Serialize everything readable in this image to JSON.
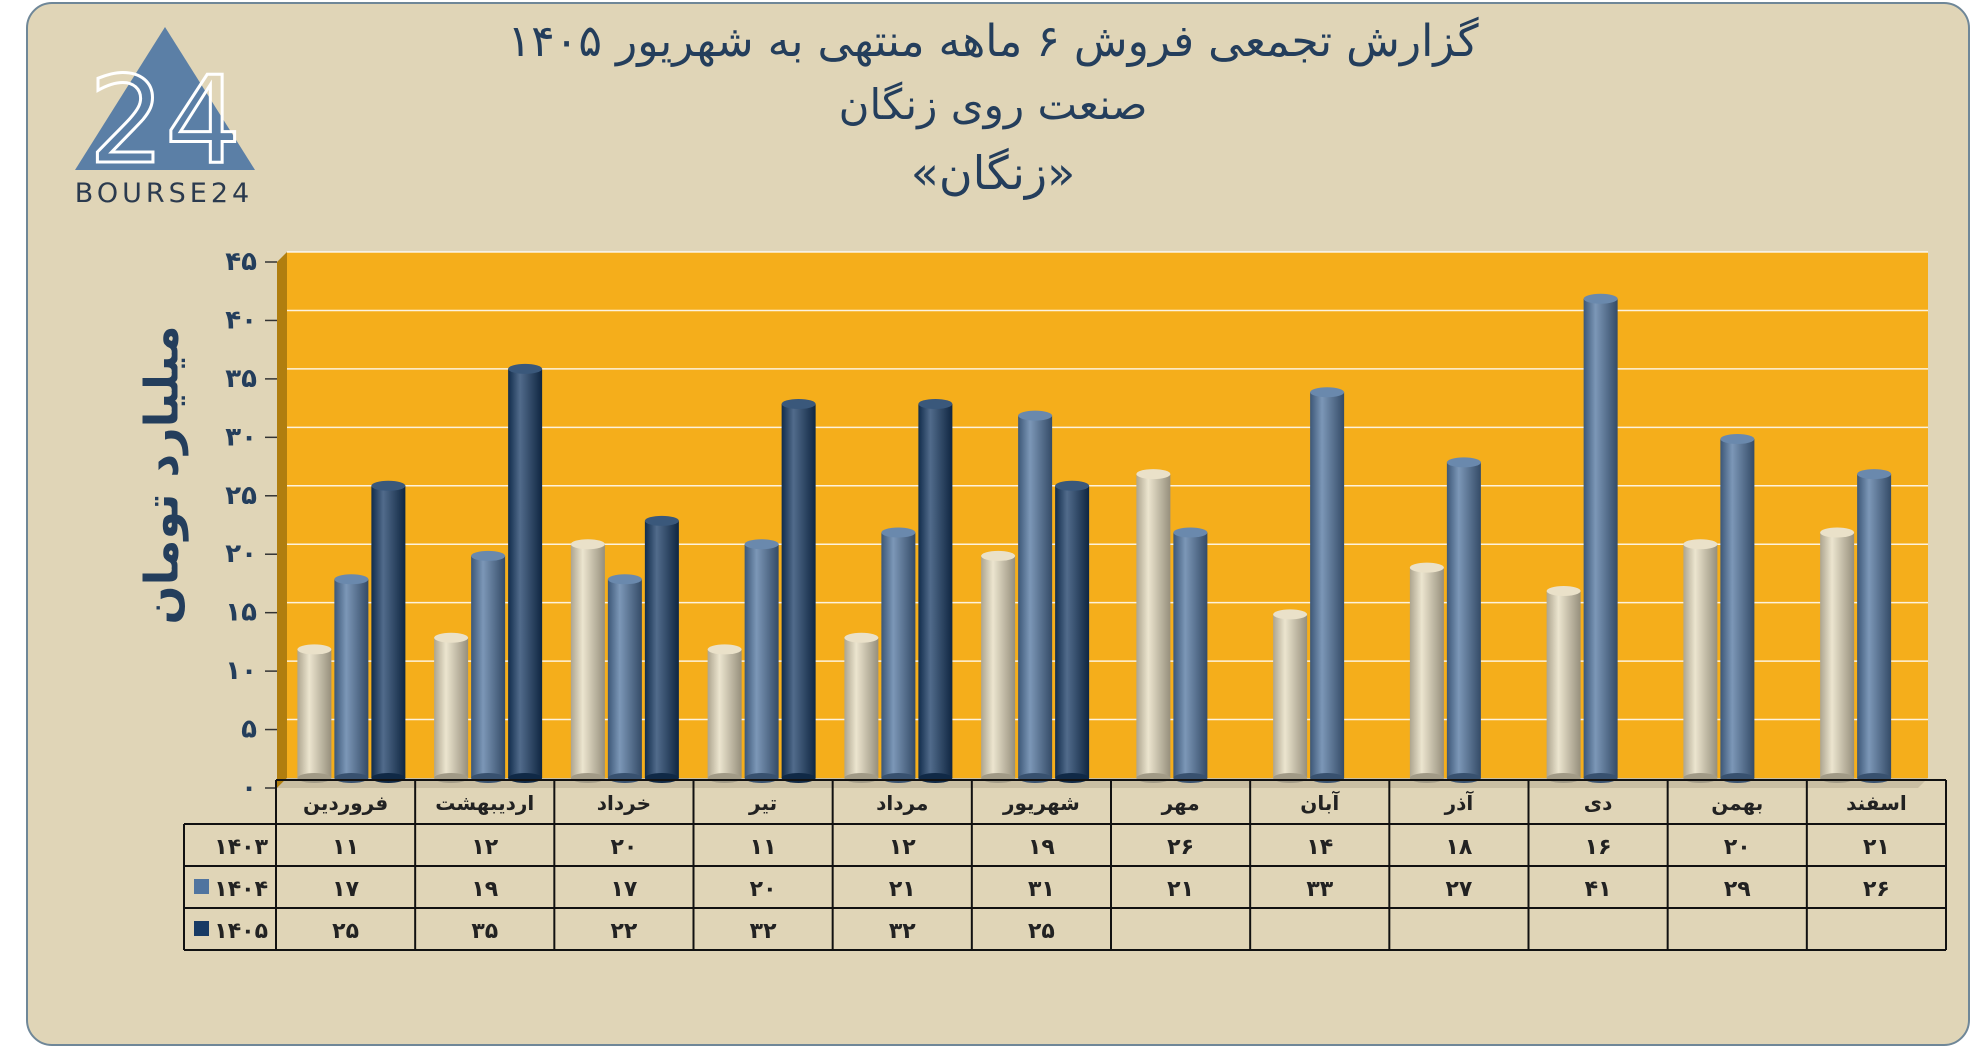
{
  "header": {
    "title_line1": "گزارش تجمعی فروش ۶ ماهه منتهی به شهریور ۱۴۰۵",
    "title_line2": "صنعت روی زنگان",
    "title_line3": "«زنگان»"
  },
  "logo": {
    "mark_text": "24",
    "wordmark": "BOURSE24"
  },
  "colors": {
    "plot_background": "#f5ae1b",
    "page_background": "#e0d5b7",
    "series_1403": "#e6dcbf",
    "series_1404": "#50749f",
    "series_1405": "#173a64",
    "text": "#243e5c"
  },
  "chart_data": {
    "type": "bar",
    "ylabel": "میلیارد تومان",
    "ylim": [
      0,
      45
    ],
    "yticks": [
      "۰",
      "۵",
      "۱۰",
      "۱۵",
      "۲۰",
      "۲۵",
      "۳۰",
      "۳۵",
      "۴۰",
      "۴۵"
    ],
    "grid": true,
    "legend": "data-table-left",
    "categories": [
      "فروردین",
      "اردیبهشت",
      "خرداد",
      "تیر",
      "مرداد",
      "شهریور",
      "مهر",
      "آبان",
      "آذر",
      "دی",
      "بهمن",
      "اسفند"
    ],
    "series": [
      {
        "name": "۱۴۰۳",
        "color": "#e6dcbf",
        "values": [
          11,
          12,
          20,
          11,
          12,
          19,
          26,
          14,
          18,
          16,
          20,
          21
        ],
        "labels": [
          "۱۱",
          "۱۲",
          "۲۰",
          "۱۱",
          "۱۲",
          "۱۹",
          "۲۶",
          "۱۴",
          "۱۸",
          "۱۶",
          "۲۰",
          "۲۱"
        ]
      },
      {
        "name": "۱۴۰۴",
        "color": "#50749f",
        "values": [
          17,
          19,
          17,
          20,
          21,
          31,
          21,
          33,
          27,
          41,
          29,
          26
        ],
        "labels": [
          "۱۷",
          "۱۹",
          "۱۷",
          "۲۰",
          "۲۱",
          "۳۱",
          "۲۱",
          "۳۳",
          "۲۷",
          "۴۱",
          "۲۹",
          "۲۶"
        ]
      },
      {
        "name": "۱۴۰۵",
        "color": "#173a64",
        "values": [
          25,
          35,
          22,
          32,
          32,
          25,
          null,
          null,
          null,
          null,
          null,
          null
        ],
        "labels": [
          "۲۵",
          "۳۵",
          "۲۲",
          "۳۲",
          "۳۲",
          "۲۵",
          "",
          "",
          "",
          "",
          "",
          ""
        ]
      }
    ]
  }
}
